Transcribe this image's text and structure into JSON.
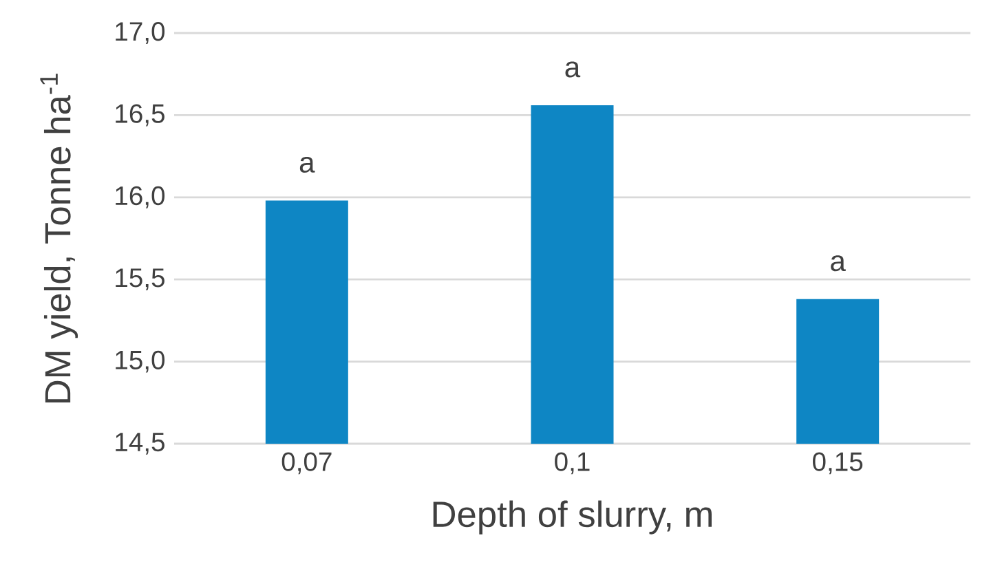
{
  "chart_data": {
    "type": "bar",
    "xlabel": "Depth of slurry, m",
    "ylabel": "DM yield, Tonne  ha$^{-1}$",
    "categories": [
      "0,07",
      "0,1",
      "0,15"
    ],
    "values": [
      15.98,
      16.56,
      15.38
    ],
    "color": "#0e86c4",
    "ylim": [
      14.5,
      17.0
    ],
    "yticks": [
      {
        "value": 14.5,
        "label": "14,5"
      },
      {
        "value": 15.0,
        "label": "15,0"
      },
      {
        "value": 15.5,
        "label": "15,5"
      },
      {
        "value": 16.0,
        "label": "16,0"
      },
      {
        "value": 16.5,
        "label": "16,5"
      },
      {
        "value": 17.0,
        "label": "17,0"
      }
    ],
    "grid": "y",
    "annotations": [
      {
        "text": "a",
        "x": "0,07",
        "y": 15.98
      },
      {
        "text": "a",
        "x": "0,1",
        "y": 16.56
      },
      {
        "text": "a",
        "x": "0,15",
        "y": 15.38
      }
    ]
  }
}
